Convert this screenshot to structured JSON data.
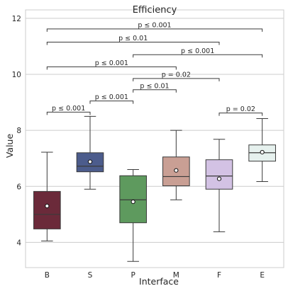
{
  "chart_data": {
    "type": "box",
    "title": "Efficiency",
    "xlabel": "Interface",
    "ylabel": "Value",
    "ylim": [
      3.1,
      12.3
    ],
    "yticks": [
      4,
      6,
      8,
      10,
      12
    ],
    "ytick_labels": [
      "4",
      "6",
      "8",
      "10",
      "12"
    ],
    "grid": "horizontal",
    "categories": [
      "B",
      "S",
      "P",
      "M",
      "F",
      "E"
    ],
    "boxes": [
      {
        "name": "B",
        "whisker_low": 4.05,
        "q1": 4.48,
        "median": 5.0,
        "q3": 5.82,
        "whisker_high": 7.22,
        "mean": 5.3,
        "color": "#6b2a3a"
      },
      {
        "name": "S",
        "whisker_low": 5.9,
        "q1": 6.52,
        "median": 6.72,
        "q3": 7.2,
        "whisker_high": 8.5,
        "mean": 6.88,
        "color": "#4c5c8c"
      },
      {
        "name": "P",
        "whisker_low": 3.32,
        "q1": 4.7,
        "median": 5.52,
        "q3": 6.38,
        "whisker_high": 6.6,
        "mean": 5.45,
        "color": "#5e9a5e"
      },
      {
        "name": "M",
        "whisker_low": 5.52,
        "q1": 6.02,
        "median": 6.35,
        "q3": 7.05,
        "whisker_high": 8.0,
        "mean": 6.57,
        "color": "#c99f94"
      },
      {
        "name": "F",
        "whisker_low": 4.38,
        "q1": 5.9,
        "median": 6.37,
        "q3": 6.95,
        "whisker_high": 7.68,
        "mean": 6.27,
        "color": "#d3c2e4"
      },
      {
        "name": "E",
        "whisker_low": 6.17,
        "q1": 6.9,
        "median": 7.2,
        "q3": 7.48,
        "whisker_high": 8.42,
        "mean": 7.22,
        "color": "#e6f1ee"
      }
    ],
    "annotations": [
      {
        "from": "B",
        "to": "E",
        "y": 11.62,
        "label": "p ≤ 0.001"
      },
      {
        "from": "B",
        "to": "F",
        "y": 11.15,
        "label": "p ≤ 0.01"
      },
      {
        "from": "P",
        "to": "E",
        "y": 10.7,
        "label": "p ≤ 0.001"
      },
      {
        "from": "B",
        "to": "M",
        "y": 10.27,
        "label": "p ≤ 0.001"
      },
      {
        "from": "P",
        "to": "F",
        "y": 9.85,
        "label": "p = 0.02"
      },
      {
        "from": "P",
        "to": "M",
        "y": 9.45,
        "label": "p ≤ 0.01"
      },
      {
        "from": "S",
        "to": "P",
        "y": 9.05,
        "label": "p ≤ 0.001"
      },
      {
        "from": "B",
        "to": "S",
        "y": 8.65,
        "label": "p ≤ 0.001"
      },
      {
        "from": "F",
        "to": "E",
        "y": 8.62,
        "label": "p = 0.02"
      }
    ]
  }
}
